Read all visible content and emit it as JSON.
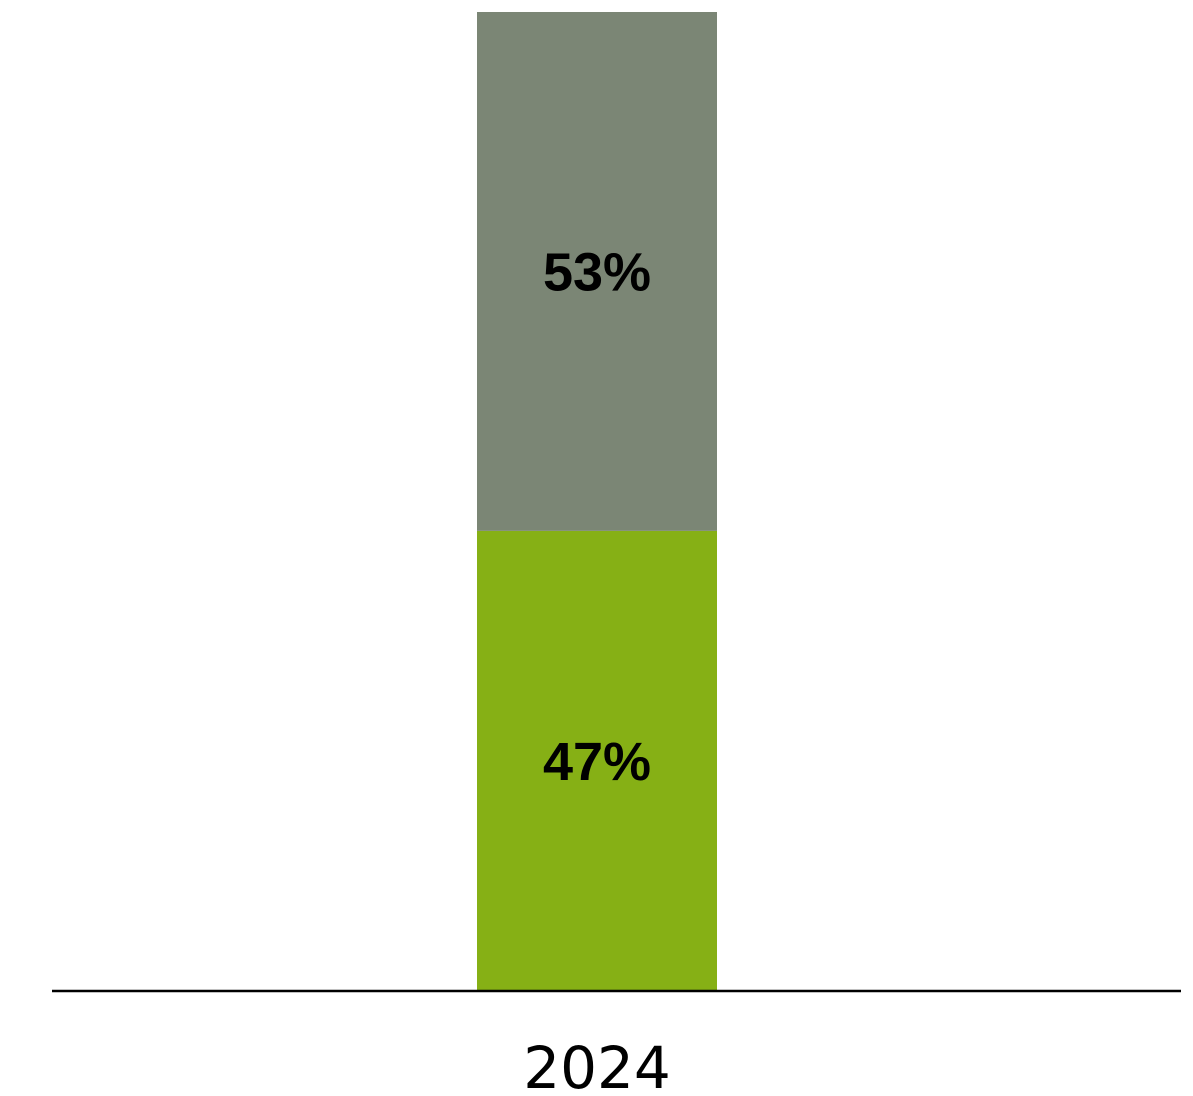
{
  "chart_data": {
    "type": "bar",
    "stacked": true,
    "categories": [
      "2024"
    ],
    "series": [
      {
        "values": [
          47
        ],
        "color": "#86b015",
        "label": "47%"
      },
      {
        "values": [
          53
        ],
        "color": "#7b8675",
        "label": "53%"
      }
    ],
    "ylim": [
      0,
      100
    ],
    "grid": false,
    "title": "",
    "xlabel": "",
    "ylabel": ""
  }
}
